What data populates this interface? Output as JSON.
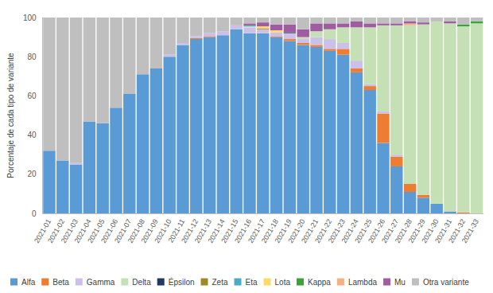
{
  "chart_data": {
    "type": "bar",
    "stacked": true,
    "y_label": "Porcentaje de cada tipo de variante",
    "categories": [
      "2021-01",
      "2021-02",
      "2021-03",
      "2021-04",
      "2021-05",
      "2021-06",
      "2021-07",
      "2021-08",
      "2021-09",
      "2021-10",
      "2021-11",
      "2021-12",
      "2021-13",
      "2021-14",
      "2021-15",
      "2021-16",
      "2021-17",
      "2021-18",
      "2021-19",
      "2021-20",
      "2021-21",
      "2021-22",
      "2021-23",
      "2021-24",
      "2021-25",
      "2021-26",
      "2021-27",
      "2021-28",
      "2021-29",
      "2021-30",
      "2021-31",
      "2021-32",
      "2021-33"
    ],
    "ylim": [
      0,
      100
    ],
    "yticks": [
      0,
      20,
      40,
      60,
      80,
      100
    ],
    "grid": false,
    "legend": "bottom",
    "series": [
      {
        "name": "Alfa",
        "color": "#5b9bd5",
        "values": [
          32,
          27,
          25,
          47,
          46,
          54,
          61,
          71,
          74,
          80,
          86,
          89,
          90,
          91,
          94,
          92,
          92,
          90,
          88,
          86,
          85,
          83,
          81,
          72,
          63,
          36,
          24,
          11,
          8,
          5,
          1,
          0,
          0
        ]
      },
      {
        "name": "Beta",
        "color": "#ed7d31",
        "values": [
          0,
          0,
          0,
          0,
          0,
          0,
          0,
          0,
          0,
          0,
          0,
          0.5,
          0.5,
          0,
          0,
          0,
          0,
          0.5,
          1,
          1,
          1,
          1,
          3,
          2,
          2,
          15,
          5,
          4,
          1.5,
          0,
          0,
          0.5,
          0
        ]
      },
      {
        "name": "Gamma",
        "color": "#ccc0e8",
        "values": [
          0,
          0,
          1,
          0,
          0,
          0,
          0,
          0,
          0,
          1,
          1,
          1,
          1.5,
          2,
          2,
          3,
          2,
          2,
          3,
          2,
          4,
          5,
          3,
          4,
          1,
          1,
          1,
          0,
          0,
          0,
          0,
          0,
          0
        ]
      },
      {
        "name": "Delta",
        "color": "#c5e0b4",
        "values": [
          0,
          0,
          0,
          0,
          0,
          0,
          0,
          0,
          0,
          0,
          0,
          0,
          0,
          0,
          0,
          0.5,
          0,
          0,
          0,
          1,
          3,
          5,
          8,
          17,
          29,
          44,
          66,
          81,
          87,
          93,
          96,
          95,
          97
        ]
      },
      {
        "name": "Épsilon",
        "color": "#1f3864",
        "values": [
          0,
          0,
          0,
          0,
          0,
          0,
          0,
          0,
          0,
          0,
          0,
          0,
          0,
          0,
          0,
          0,
          0,
          0,
          0.5,
          0,
          0,
          0,
          0,
          0,
          0,
          0,
          0,
          0,
          0,
          0,
          0,
          0,
          0
        ]
      },
      {
        "name": "Zeta",
        "color": "#9c8a26",
        "values": [
          0,
          0,
          0,
          0,
          0,
          0,
          0,
          0,
          0,
          0,
          0,
          0,
          0,
          0,
          0,
          0,
          0.5,
          0,
          0,
          0,
          0,
          0,
          0,
          0,
          0,
          0,
          0,
          0,
          0,
          0,
          0,
          0,
          0
        ]
      },
      {
        "name": "Eta",
        "color": "#4bacc6",
        "values": [
          0,
          0,
          0,
          0,
          0,
          0,
          0,
          0,
          0,
          0,
          0,
          0,
          0,
          0,
          0,
          0.5,
          0,
          0,
          0,
          0,
          0,
          0,
          0,
          0,
          0,
          0,
          0,
          0,
          0,
          0,
          0,
          0,
          0
        ]
      },
      {
        "name": "Lota",
        "color": "#ffd966",
        "values": [
          0,
          0,
          0,
          0,
          0,
          0,
          0,
          0,
          0,
          0,
          0,
          0,
          0,
          0,
          0,
          0,
          1,
          1,
          0,
          0,
          0,
          0,
          0,
          0,
          0,
          0,
          0,
          0,
          0,
          0,
          0,
          0,
          0
        ]
      },
      {
        "name": "Kappa",
        "color": "#38a538",
        "values": [
          0,
          0,
          0,
          0,
          0,
          0,
          0,
          0,
          0,
          0,
          0,
          0,
          0,
          0,
          0,
          0,
          0,
          0,
          0,
          0,
          0,
          0,
          0,
          0,
          0,
          0,
          0,
          0,
          0,
          0,
          0,
          1,
          1
        ]
      },
      {
        "name": "Lambda",
        "color": "#f4b183",
        "values": [
          0,
          0,
          0,
          0,
          0,
          0,
          0,
          0,
          0,
          0,
          0,
          0,
          0,
          0,
          0,
          0,
          0,
          0,
          0,
          0,
          0,
          0,
          0,
          0,
          0,
          0,
          0,
          1,
          0,
          0,
          0,
          0,
          0
        ]
      },
      {
        "name": "Mu",
        "color": "#a05ca0",
        "values": [
          0,
          0,
          0,
          0,
          0,
          0,
          0,
          0,
          0,
          0,
          0,
          0,
          0,
          0,
          0,
          1,
          2,
          3,
          4,
          4,
          4,
          3,
          2,
          3,
          2,
          1,
          1,
          1,
          1,
          0,
          1,
          0,
          0
        ]
      },
      {
        "name": "Otra variante",
        "color": "#bfbfbf",
        "values": [
          68,
          73,
          74,
          53,
          54,
          46,
          39,
          29,
          26,
          19,
          13,
          9.5,
          8,
          7,
          4,
          3,
          2.5,
          3.5,
          3.5,
          6,
          3,
          3,
          3,
          2,
          3,
          3,
          3,
          2,
          2.5,
          2,
          2,
          3.5,
          2
        ]
      }
    ]
  }
}
